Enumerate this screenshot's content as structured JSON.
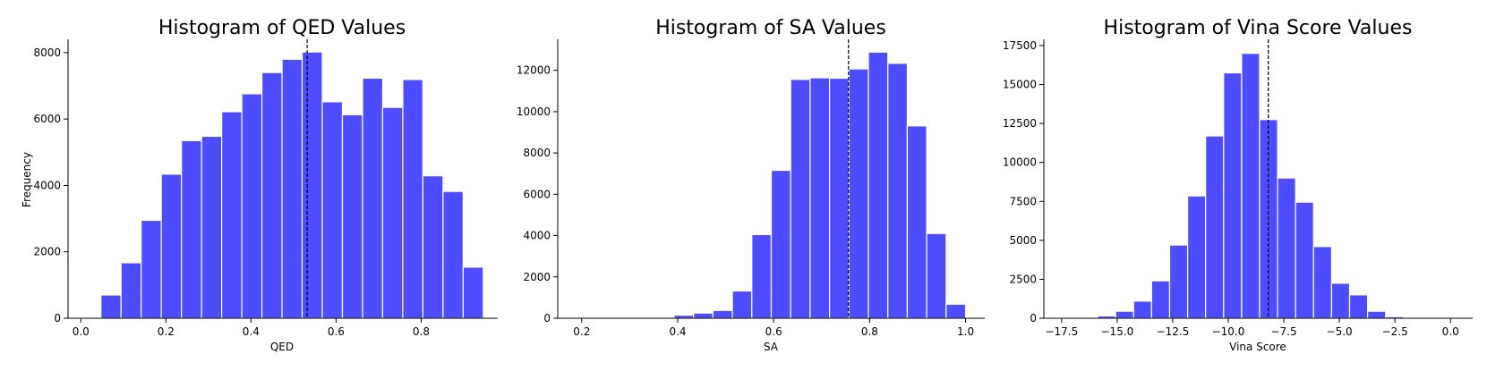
{
  "chart_data": [
    {
      "type": "bar",
      "title": "Histogram of QED Values",
      "xlabel": "QED",
      "ylabel": "Frequency",
      "xlim": [
        -0.03,
        0.98
      ],
      "ylim": [
        0,
        8400
      ],
      "xticks": [
        0.0,
        0.2,
        0.4,
        0.6,
        0.8
      ],
      "xtick_labels": [
        "0.0",
        "0.2",
        "0.4",
        "0.6",
        "0.8"
      ],
      "yticks": [
        0,
        2000,
        4000,
        6000,
        8000
      ],
      "ytick_labels": [
        "0",
        "2000",
        "4000",
        "6000",
        "8000"
      ],
      "bin_edges": [
        0.0,
        0.0473,
        0.0946,
        0.1419,
        0.1892,
        0.2365,
        0.2838,
        0.3311,
        0.3784,
        0.4257,
        0.473,
        0.5203,
        0.5676,
        0.6149,
        0.6622,
        0.7095,
        0.7568,
        0.8041,
        0.8514,
        0.8987,
        0.946
      ],
      "values": [
        30,
        700,
        1670,
        2950,
        4340,
        5350,
        5480,
        6220,
        6760,
        7400,
        7800,
        8020,
        6520,
        6130,
        7230,
        6350,
        7190,
        4290,
        3820,
        1540
      ],
      "mean_line_x": 0.532,
      "grid": false
    },
    {
      "type": "bar",
      "title": "Histogram of SA Values",
      "xlabel": "SA",
      "ylabel": "",
      "xlim": [
        0.15,
        1.04
      ],
      "ylim": [
        0,
        13500
      ],
      "xticks": [
        0.2,
        0.4,
        0.6,
        0.8,
        1.0
      ],
      "xtick_labels": [
        "0.2",
        "0.4",
        "0.6",
        "0.8",
        "1.0"
      ],
      "yticks": [
        0,
        2000,
        4000,
        6000,
        8000,
        10000,
        12000
      ],
      "ytick_labels": [
        "0",
        "2000",
        "4000",
        "6000",
        "8000",
        "10000",
        "12000"
      ],
      "bin_edges": [
        0.19,
        0.2305,
        0.271,
        0.3115,
        0.352,
        0.3925,
        0.433,
        0.4735,
        0.514,
        0.5545,
        0.595,
        0.6355,
        0.676,
        0.7165,
        0.757,
        0.7975,
        0.838,
        0.8785,
        0.919,
        0.9595,
        1.0
      ],
      "values": [
        5,
        5,
        10,
        50,
        10,
        150,
        250,
        380,
        1320,
        4050,
        7160,
        11560,
        11640,
        11620,
        12070,
        12880,
        12340,
        9310,
        4100,
        680
      ],
      "mean_line_x": 0.756,
      "grid": false
    },
    {
      "type": "bar",
      "title": "Histogram of Vina Score Values",
      "xlabel": "Vina Score",
      "ylabel": "",
      "xlim": [
        -18.3,
        1.0
      ],
      "ylim": [
        0,
        17900
      ],
      "xticks": [
        -17.5,
        -15.0,
        -12.5,
        -10.0,
        -7.5,
        -5.0,
        -2.5,
        0.0
      ],
      "xtick_labels": [
        "−17.5",
        "−15.0",
        "−12.5",
        "−10.0",
        "−7.5",
        "−5.0",
        "−2.5",
        "0.0"
      ],
      "yticks": [
        0,
        2500,
        5000,
        7500,
        10000,
        12500,
        15000,
        17500
      ],
      "ytick_labels": [
        "0",
        "2500",
        "5000",
        "7500",
        "10000",
        "12500",
        "15000",
        "17500"
      ],
      "bin_edges": [
        -17.5,
        -16.69,
        -15.88,
        -15.07,
        -14.26,
        -13.45,
        -12.64,
        -11.83,
        -11.02,
        -10.21,
        -9.4,
        -8.59,
        -7.78,
        -6.97,
        -6.16,
        -5.35,
        -4.54,
        -3.73,
        -2.92,
        -2.11,
        -1.3,
        -0.49
      ],
      "values": [
        5,
        10,
        150,
        450,
        1100,
        2400,
        4700,
        7850,
        11700,
        15750,
        17000,
        12750,
        9000,
        7450,
        4600,
        2250,
        1500,
        450,
        100,
        10,
        5
      ],
      "mean_line_x": -8.2,
      "grid": false
    }
  ]
}
